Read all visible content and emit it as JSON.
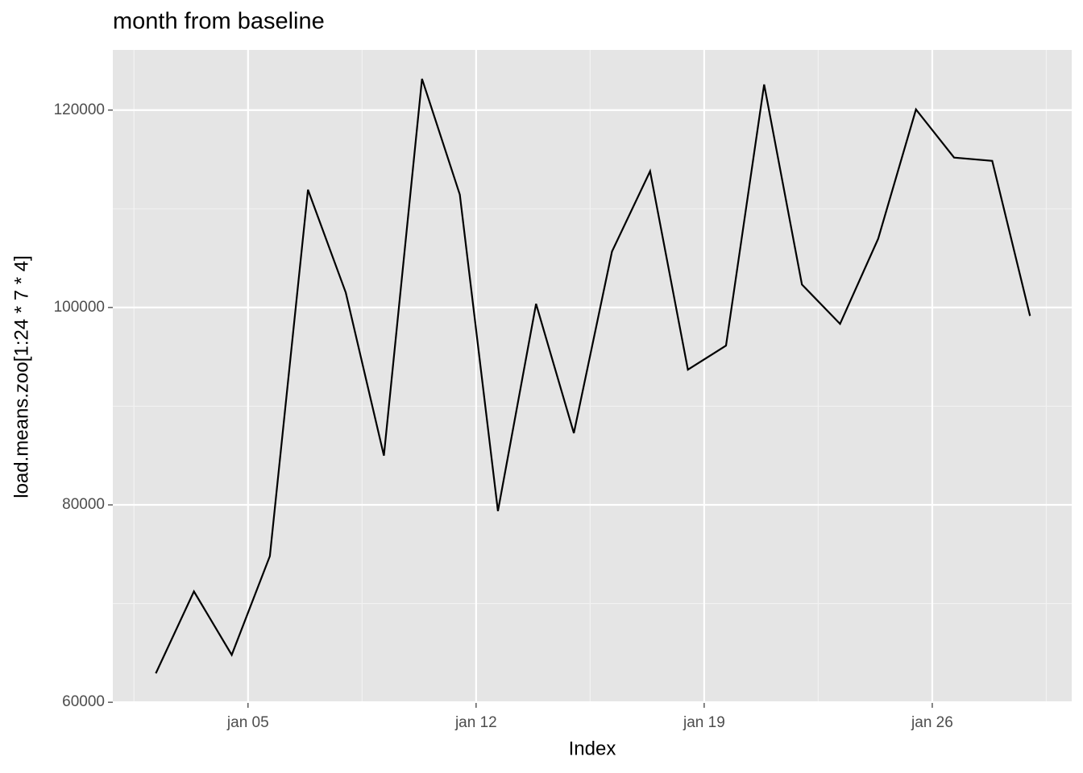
{
  "chart_data": {
    "type": "line",
    "title": "month from baseline",
    "x_label": "Index",
    "y_label": "load.means.zoo[1:24 * 7 * 4]",
    "x": [
      2.17,
      3.34,
      4.5,
      5.67,
      6.84,
      8.0,
      9.17,
      10.34,
      11.5,
      12.67,
      13.84,
      15.0,
      16.17,
      17.34,
      18.5,
      19.67,
      20.84,
      22.0,
      23.17,
      24.34,
      25.5,
      26.67,
      27.84,
      29.0
    ],
    "series": [
      {
        "name": "load.means.zoo[1:24 * 7 * 4]",
        "color": "#000000",
        "values": [
          62930,
          71230,
          64800,
          74810,
          111930,
          101510,
          84990,
          123170,
          111440,
          79370,
          100370,
          87270,
          105670,
          113810,
          93700,
          96140,
          122600,
          102330,
          98340,
          106970,
          120070,
          115190,
          114860,
          99150
        ]
      }
    ],
    "xlim": [
      0.85,
      30.28
    ],
    "xticks": [
      {
        "value": 5,
        "label": "jan 05"
      },
      {
        "value": 12,
        "label": "jan 12"
      },
      {
        "value": 19,
        "label": "jan 19"
      },
      {
        "value": 26,
        "label": "jan 26"
      }
    ],
    "ylim": [
      59930,
      126100
    ],
    "yticks": [
      60000,
      80000,
      100000,
      120000
    ],
    "grid": true
  }
}
